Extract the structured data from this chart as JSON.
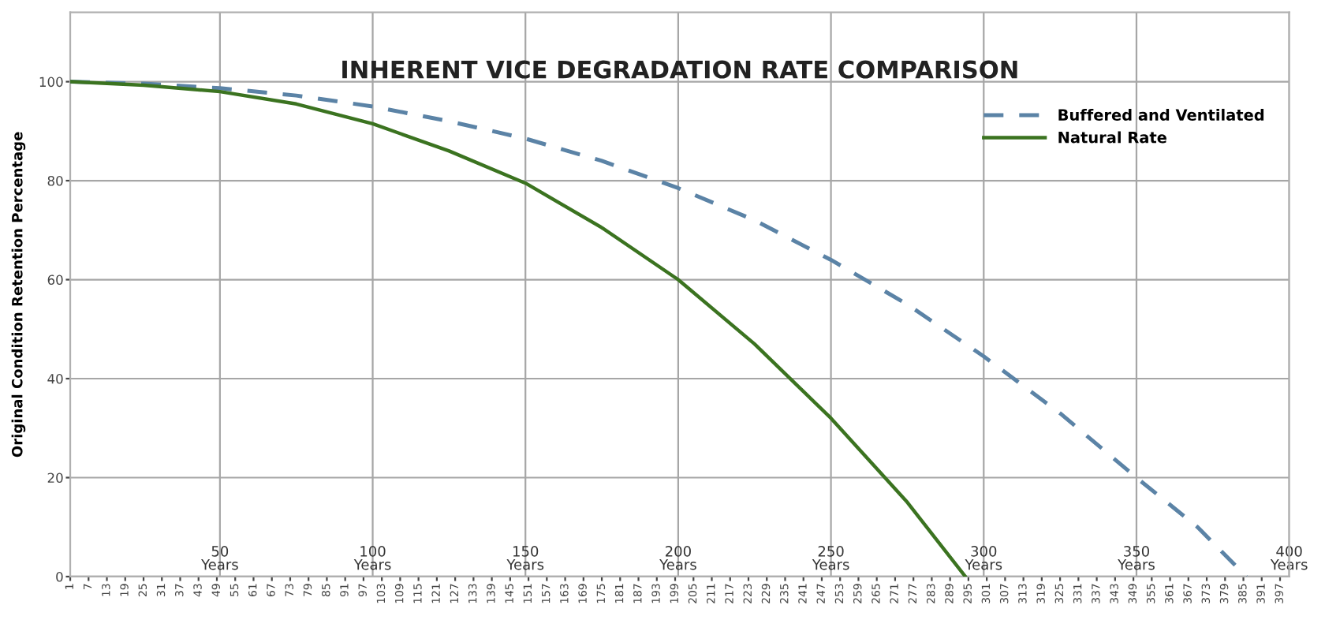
{
  "chart_data": {
    "type": "line",
    "title": "INHERENT VICE DEGRADATION RATE COMPARISON",
    "ylabel": "Original Condition Retention Percentage",
    "xlim": [
      1,
      400
    ],
    "xticks": [
      1,
      7,
      13,
      19,
      25,
      31,
      37,
      43,
      49,
      55,
      61,
      67,
      73,
      79,
      85,
      91,
      97,
      103,
      109,
      115,
      121,
      127,
      133,
      139,
      145,
      151,
      157,
      163,
      169,
      175,
      181,
      187,
      193,
      199,
      205,
      211,
      217,
      223,
      229,
      235,
      241,
      247,
      253,
      259,
      265,
      271,
      277,
      283,
      289,
      295,
      301,
      307,
      313,
      319,
      325,
      331,
      337,
      343,
      349,
      355,
      361,
      367,
      373,
      379,
      385,
      391,
      397
    ],
    "ylim": [
      0,
      114
    ],
    "yticks": [
      0,
      20,
      40,
      60,
      80,
      100
    ],
    "grid": "y",
    "legend": "top right",
    "ref_lines": [
      {
        "axis": "x",
        "value": 50,
        "label": "50\nYears"
      },
      {
        "axis": "x",
        "value": 100,
        "label": "100\nYears"
      },
      {
        "axis": "x",
        "value": 150,
        "label": "150\nYears"
      },
      {
        "axis": "x",
        "value": 200,
        "label": "200\nYears"
      },
      {
        "axis": "x",
        "value": 250,
        "label": "250\nYears"
      },
      {
        "axis": "x",
        "value": 300,
        "label": "300\nYears"
      },
      {
        "axis": "x",
        "value": 350,
        "label": "350\nYears"
      },
      {
        "axis": "x",
        "value": 400,
        "label": "400\nYears"
      }
    ],
    "series": [
      {
        "name": "Buffered and Ventilated",
        "color": "#5b83a6",
        "line_style": "dashed",
        "x": [
          1,
          25,
          50,
          75,
          100,
          125,
          150,
          175,
          200,
          225,
          250,
          275,
          300,
          325,
          350,
          370,
          386
        ],
        "values": [
          100,
          99.6,
          98.7,
          97.2,
          95,
          92,
          88.5,
          84,
          78.5,
          72,
          64,
          55,
          44.5,
          33,
          20,
          10,
          0
        ]
      },
      {
        "name": "Natural Rate",
        "color": "#3b7320",
        "line_style": "solid",
        "x": [
          1,
          25,
          50,
          75,
          100,
          125,
          150,
          175,
          200,
          225,
          250,
          275,
          294
        ],
        "values": [
          100,
          99.3,
          98,
          95.5,
          91.5,
          86,
          79.5,
          70.5,
          60,
          47,
          32,
          15,
          0
        ]
      }
    ]
  }
}
